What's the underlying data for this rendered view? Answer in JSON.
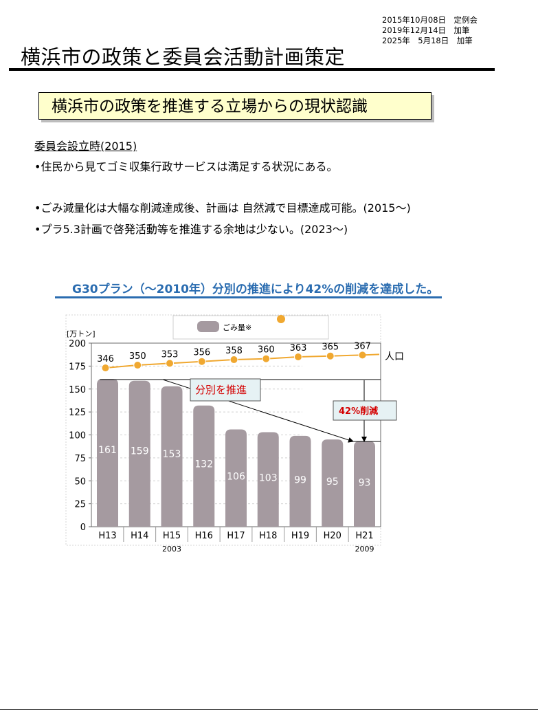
{
  "dates": [
    "2015年10月08日　定例会",
    "2019年12月14日　加筆",
    "2025年　5月18日　加筆"
  ],
  "header": {
    "title": "横浜市の政策と委員会活動計画策定"
  },
  "section": {
    "title": "横浜市の政策を推進する立場からの現状認識",
    "subheading": "委員会設立時(2015)",
    "bullets": [
      "•住民から見てゴミ収集行政サービスは満足する状況にある。",
      "•ごみ減量化は大幅な削減達成後、計画は 自然減で目標達成可能。(2015～)",
      "•プラ5.3計画で啓発活動等を推進する余地は少ない。(2023～)"
    ]
  },
  "caption": "G30プラン（～2010年）分別の推進により42%の削減を達成した。",
  "chart_data": {
    "type": "bar",
    "ylabel": "[万トン]",
    "ylim": [
      0,
      200
    ],
    "yticks": [
      0,
      25,
      50,
      75,
      100,
      125,
      150,
      175,
      200
    ],
    "categories": [
      "H13",
      "H14",
      "H15",
      "H16",
      "H17",
      "H18",
      "H19",
      "H20",
      "H21"
    ],
    "year_labels": {
      "H15": "2003",
      "H21": "2009"
    },
    "legend_label": "ごみ量※",
    "series": [
      {
        "name": "ごみ量※",
        "type": "bar",
        "color": "#a59aa0",
        "values": [
          161,
          159,
          153,
          132,
          106,
          103,
          99,
          95,
          93
        ]
      },
      {
        "name": "人口",
        "type": "line",
        "color": "#f0a830",
        "values": [
          346,
          350,
          353,
          356,
          358,
          360,
          363,
          365,
          367
        ],
        "plot_y": [
          173,
          176,
          178,
          180,
          182,
          183,
          185,
          186,
          187
        ]
      }
    ],
    "line_label": "人口",
    "annotations": {
      "sorting": "分別を推進",
      "reduction": "42%削減"
    }
  }
}
